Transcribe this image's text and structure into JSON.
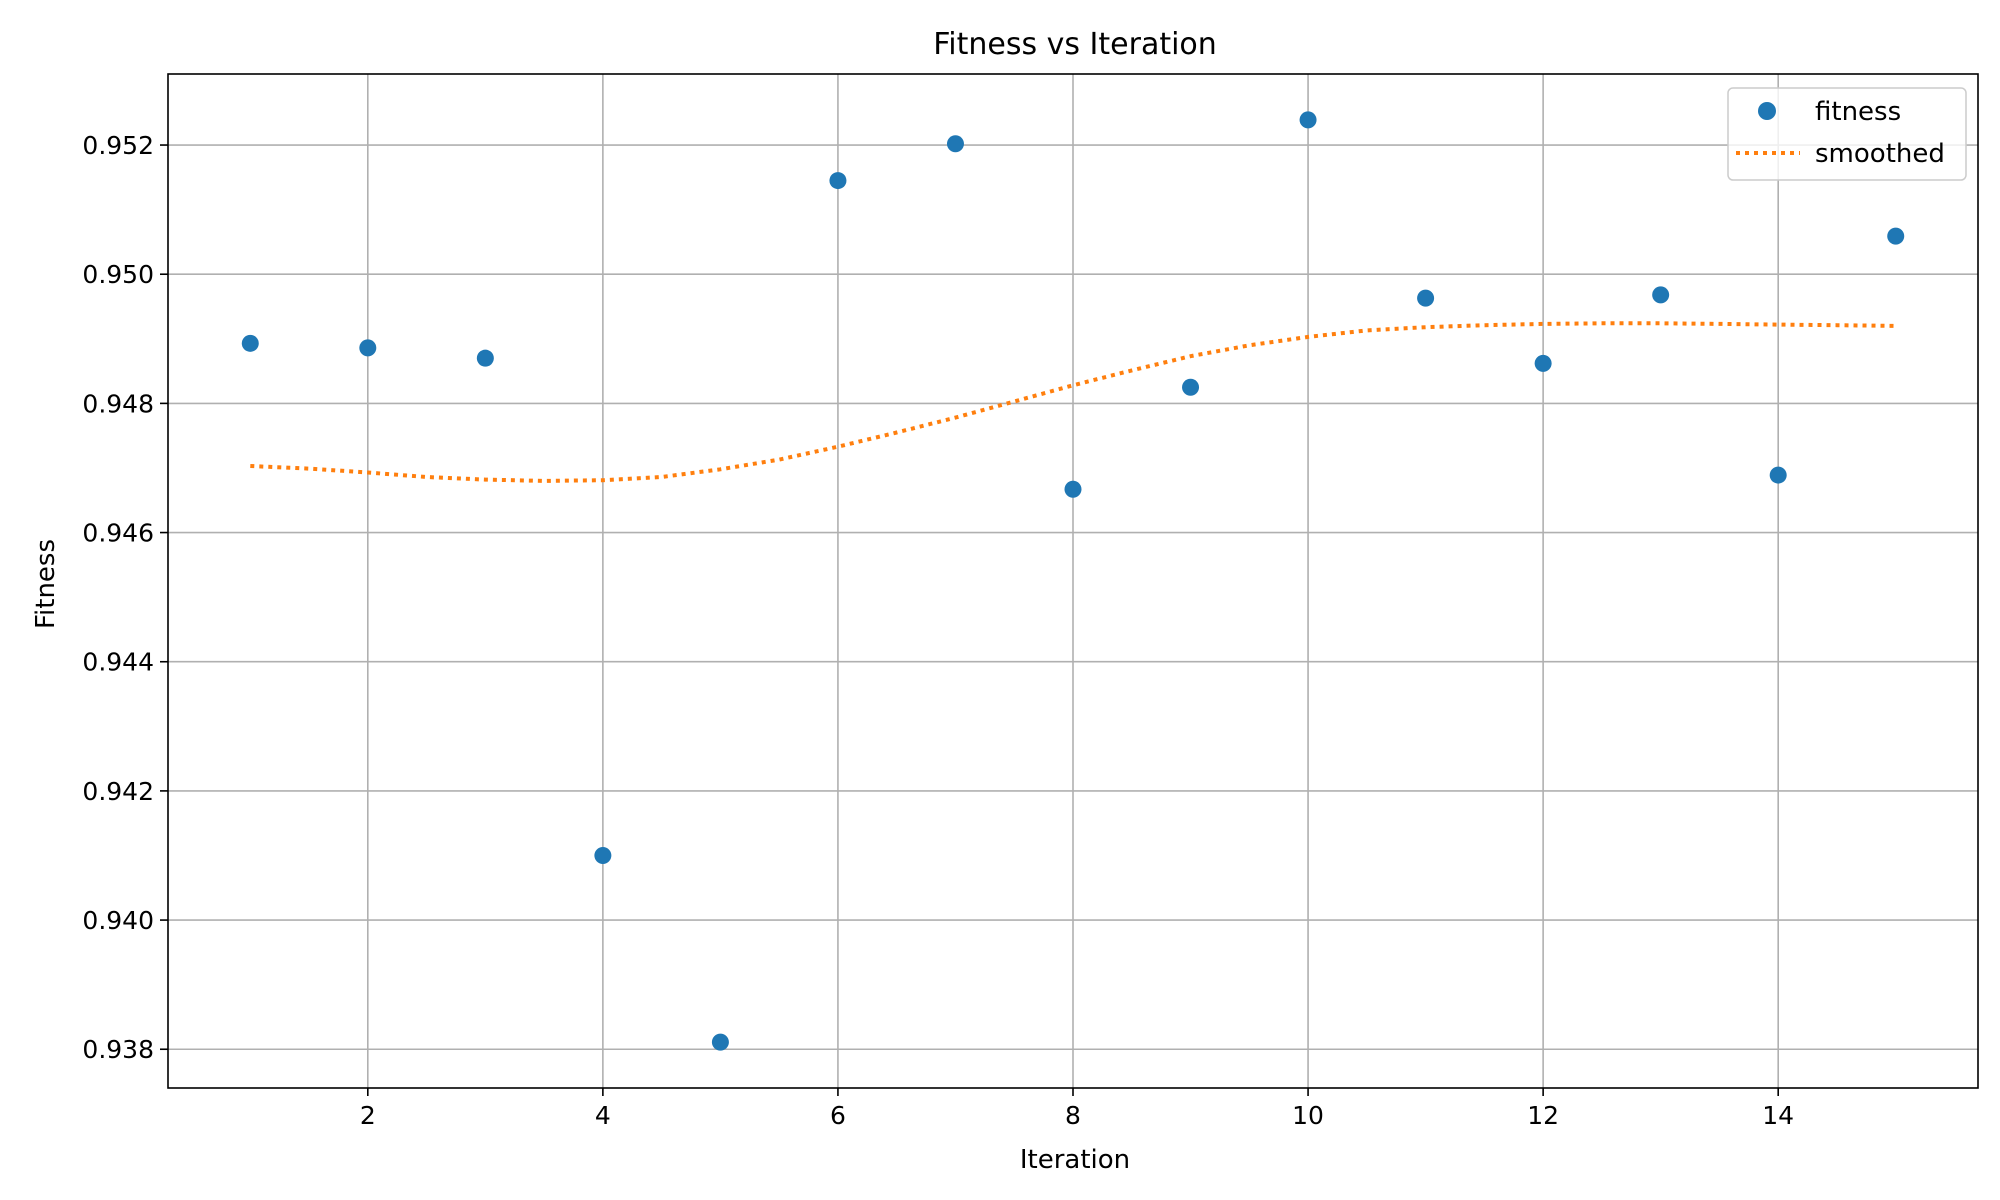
{
  "chart_data": {
    "type": "scatter",
    "title": "Fitness vs Iteration",
    "xlabel": "Iteration",
    "ylabel": "Fitness",
    "xlim": [
      0.3,
      15.7
    ],
    "ylim": [
      0.9374,
      0.9531
    ],
    "xticks": [
      2,
      4,
      6,
      8,
      10,
      12,
      14
    ],
    "yticks": [
      0.938,
      0.94,
      0.942,
      0.944,
      0.946,
      0.948,
      0.95,
      0.952
    ],
    "xtick_labels": [
      "2",
      "4",
      "6",
      "8",
      "10",
      "12",
      "14"
    ],
    "ytick_labels": [
      "0.938",
      "0.940",
      "0.942",
      "0.944",
      "0.946",
      "0.948",
      "0.950",
      "0.952"
    ],
    "grid": true,
    "legend_position": "top-right",
    "series": [
      {
        "name": "fitness",
        "style": "markers",
        "color": "#1f77b4",
        "x": [
          1,
          2,
          3,
          4,
          5,
          6,
          7,
          8,
          9,
          10,
          11,
          12,
          13,
          14,
          15
        ],
        "y": [
          0.94893,
          0.94886,
          0.9487,
          0.941,
          0.93811,
          0.95145,
          0.95202,
          0.94667,
          0.94825,
          0.95239,
          0.94963,
          0.94862,
          0.94968,
          0.94689,
          0.95059
        ]
      },
      {
        "name": "smoothed",
        "style": "dotted-line",
        "color": "#ff7f0e",
        "x": [
          1,
          1.5,
          2,
          2.5,
          3,
          3.5,
          4,
          4.5,
          5,
          5.5,
          6,
          6.5,
          7,
          7.5,
          8,
          8.5,
          9,
          9.5,
          10,
          10.5,
          11,
          11.5,
          12,
          12.5,
          13,
          13.5,
          14,
          14.5,
          15
        ],
        "y": [
          0.94703,
          0.94699,
          0.94693,
          0.94686,
          0.94682,
          0.9468,
          0.94681,
          0.94686,
          0.94698,
          0.94713,
          0.94733,
          0.94755,
          0.94778,
          0.94803,
          0.94828,
          0.94851,
          0.94873,
          0.9489,
          0.94903,
          0.94913,
          0.94918,
          0.94921,
          0.94923,
          0.94924,
          0.94924,
          0.94923,
          0.94922,
          0.94921,
          0.9492
        ]
      }
    ]
  }
}
